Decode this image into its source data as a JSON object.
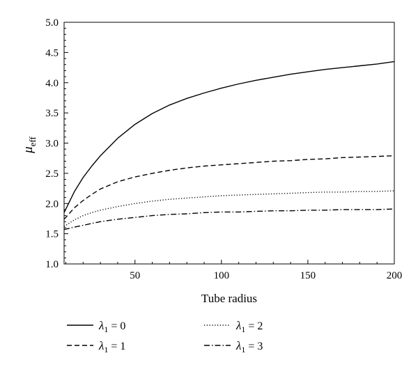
{
  "chart_data": {
    "type": "line",
    "xlabel": "Tube radius",
    "ylabel": {
      "main": "μ",
      "sub": "eff"
    },
    "xlim": [
      9,
      200
    ],
    "ylim": [
      1.0,
      5.0
    ],
    "xticks": [
      50,
      100,
      150,
      200
    ],
    "xtick_labels": [
      "50",
      "100",
      "150",
      "200"
    ],
    "yticks": [
      1.0,
      1.5,
      2.0,
      2.5,
      3.0,
      3.5,
      4.0,
      4.5,
      5.0
    ],
    "ytick_labels": [
      "1.0",
      "1.5",
      "2.0",
      "2.5",
      "3.0",
      "3.5",
      "4.0",
      "4.5",
      "5.0"
    ],
    "grid": false,
    "legend_placement": "below",
    "series": [
      {
        "name": "λ1 = 0",
        "legend": {
          "sym": "λ",
          "sub": "1",
          "rest": " = 0"
        },
        "style": "solid",
        "x": [
          9,
          15,
          20,
          25,
          30,
          40,
          50,
          60,
          70,
          80,
          90,
          100,
          110,
          120,
          130,
          140,
          150,
          160,
          170,
          180,
          190,
          200
        ],
        "y": [
          1.85,
          2.2,
          2.43,
          2.62,
          2.79,
          3.08,
          3.31,
          3.49,
          3.63,
          3.74,
          3.83,
          3.91,
          3.98,
          4.04,
          4.09,
          4.14,
          4.18,
          4.22,
          4.25,
          4.28,
          4.31,
          4.35
        ]
      },
      {
        "name": "λ1 = 1",
        "legend": {
          "sym": "λ",
          "sub": "1",
          "rest": " = 1"
        },
        "style": "dashed",
        "x": [
          9,
          15,
          20,
          25,
          30,
          40,
          50,
          60,
          70,
          80,
          90,
          100,
          110,
          120,
          130,
          140,
          150,
          160,
          170,
          180,
          190,
          200
        ],
        "y": [
          1.74,
          1.93,
          2.05,
          2.15,
          2.24,
          2.36,
          2.44,
          2.5,
          2.55,
          2.59,
          2.62,
          2.64,
          2.66,
          2.68,
          2.7,
          2.71,
          2.73,
          2.74,
          2.76,
          2.77,
          2.78,
          2.79
        ]
      },
      {
        "name": "λ1 = 2",
        "legend": {
          "sym": "λ",
          "sub": "1",
          "rest": " = 2"
        },
        "style": "dotted",
        "x": [
          9,
          15,
          20,
          25,
          30,
          40,
          50,
          60,
          70,
          80,
          90,
          100,
          110,
          120,
          130,
          140,
          150,
          160,
          170,
          180,
          190,
          200
        ],
        "y": [
          1.62,
          1.73,
          1.8,
          1.85,
          1.89,
          1.95,
          2.0,
          2.04,
          2.07,
          2.09,
          2.11,
          2.13,
          2.14,
          2.15,
          2.16,
          2.17,
          2.18,
          2.19,
          2.19,
          2.2,
          2.2,
          2.21
        ]
      },
      {
        "name": "λ1 = 3",
        "legend": {
          "sym": "λ",
          "sub": "1",
          "rest": " = 3"
        },
        "style": "dashdot",
        "x": [
          9,
          15,
          20,
          25,
          30,
          40,
          50,
          60,
          70,
          80,
          90,
          100,
          110,
          120,
          130,
          140,
          150,
          160,
          170,
          180,
          190,
          200
        ],
        "y": [
          1.57,
          1.61,
          1.64,
          1.67,
          1.7,
          1.74,
          1.77,
          1.8,
          1.82,
          1.83,
          1.85,
          1.86,
          1.86,
          1.87,
          1.88,
          1.88,
          1.89,
          1.89,
          1.9,
          1.9,
          1.9,
          1.91
        ]
      }
    ]
  }
}
